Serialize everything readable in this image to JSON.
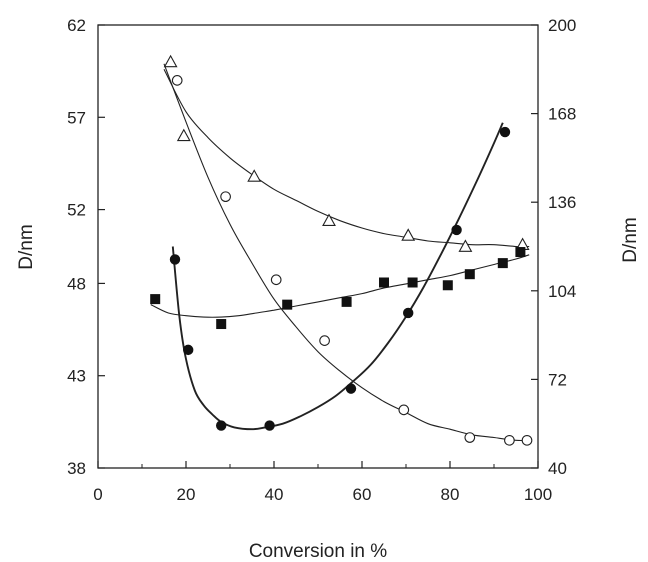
{
  "chart_data": {
    "type": "scatter",
    "title": "",
    "xlabel": "Conversion in %",
    "ylabel_left": "D/nm",
    "ylabel_right": "D/nm",
    "xlim": [
      0,
      100
    ],
    "ylim_left": [
      38,
      62
    ],
    "ylim_right": [
      40,
      200
    ],
    "x_ticks": [
      0,
      20,
      40,
      60,
      80,
      100
    ],
    "y_left_ticks": [
      38,
      43,
      48,
      52,
      57,
      62
    ],
    "y_right_ticks": [
      40,
      72,
      104,
      136,
      168,
      200
    ],
    "grid": false,
    "legend": "none",
    "series": [
      {
        "marker": "open-triangle",
        "axis": "left",
        "x": [
          16.5,
          19.5,
          35.5,
          52.5,
          70.5,
          83.5,
          96.5
        ],
        "y": [
          60.0,
          56.0,
          53.8,
          51.4,
          50.6,
          50.0,
          50.1
        ],
        "fit_x": [
          15,
          20,
          25,
          30,
          35,
          40,
          45,
          50,
          55,
          60,
          65,
          70,
          75,
          80,
          85,
          90,
          95,
          98
        ],
        "fit_y": [
          59.6,
          57.3,
          55.9,
          54.8,
          53.9,
          53.1,
          52.5,
          51.9,
          51.4,
          51.0,
          50.7,
          50.5,
          50.3,
          50.2,
          50.1,
          50.1,
          50.0,
          50.0
        ]
      },
      {
        "marker": "open-circle",
        "axis": "right",
        "x": [
          18,
          29,
          40.5,
          51.5,
          69.5,
          84.5,
          93.5,
          97.5
        ],
        "y": [
          180,
          138,
          108,
          86,
          61,
          51,
          50,
          50
        ],
        "fit_x": [
          15,
          20,
          25,
          30,
          35,
          40,
          45,
          50,
          55,
          60,
          65,
          70,
          75,
          80,
          85,
          90,
          95,
          98
        ],
        "fit_y": [
          186,
          165,
          145,
          128,
          114,
          101,
          91,
          82,
          75,
          69,
          64,
          60,
          56,
          54,
          52,
          51,
          50,
          50
        ]
      },
      {
        "marker": "filled-circle",
        "axis": "left",
        "x": [
          17.5,
          20.5,
          28,
          39,
          57.5,
          70.5,
          81.5,
          92.5
        ],
        "y": [
          49.3,
          44.4,
          40.3,
          40.3,
          42.3,
          46.4,
          50.9,
          56.2
        ],
        "fit_x": [
          17,
          18.5,
          20,
          22,
          24,
          26,
          28,
          31,
          35,
          38,
          42,
          46,
          50,
          54,
          58,
          62,
          66,
          70,
          74,
          78,
          82,
          86,
          90,
          92
        ],
        "fit_y": [
          50.0,
          46.2,
          43.9,
          42.2,
          41.4,
          40.9,
          40.5,
          40.2,
          40.1,
          40.2,
          40.4,
          40.8,
          41.3,
          41.9,
          42.7,
          43.6,
          44.8,
          46.2,
          47.8,
          49.6,
          51.5,
          53.5,
          55.6,
          56.7
        ]
      },
      {
        "marker": "filled-square",
        "axis": "right",
        "x": [
          13,
          28,
          43,
          56.5,
          65,
          71.5,
          79.5,
          84.5,
          92,
          96
        ],
        "y": [
          101,
          92,
          99,
          100,
          107,
          107,
          106,
          110,
          114,
          118
        ],
        "fit_x": [
          12,
          16,
          20,
          24,
          28,
          32,
          36,
          40,
          45,
          50,
          55,
          60,
          65,
          70,
          75,
          80,
          85,
          90,
          95,
          98
        ],
        "fit_y": [
          99,
          96,
          95,
          94.5,
          94.5,
          95,
          96,
          97,
          98.5,
          100,
          101.5,
          103,
          105,
          106.5,
          108,
          109.5,
          111.5,
          113.5,
          115.5,
          117
        ]
      }
    ]
  }
}
